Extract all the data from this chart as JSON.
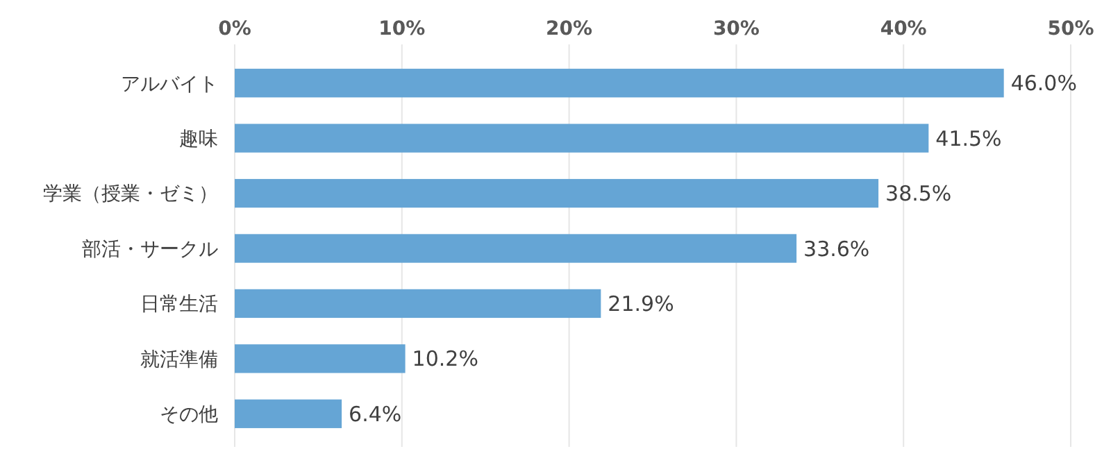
{
  "chart_data": {
    "type": "bar",
    "orientation": "horizontal",
    "categories": [
      "アルバイト",
      "趣味",
      "学業（授業・ゼミ）",
      "部活・サークル",
      "日常生活",
      "就活準備",
      "その他"
    ],
    "values": [
      46.0,
      41.5,
      38.5,
      33.6,
      21.9,
      10.2,
      6.4
    ],
    "value_labels": [
      "46.0%",
      "41.5%",
      "38.5%",
      "33.6%",
      "21.9%",
      "10.2%",
      "6.4%"
    ],
    "color": "#65a5d5",
    "xlim": [
      0,
      50
    ],
    "xticks": [
      {
        "value": 0,
        "label": "0%"
      },
      {
        "value": 10,
        "label": "10%"
      },
      {
        "value": 20,
        "label": "20%"
      },
      {
        "value": 30,
        "label": "30%"
      },
      {
        "value": 40,
        "label": "40%"
      },
      {
        "value": 50,
        "label": "50%"
      }
    ],
    "grid": "x"
  }
}
